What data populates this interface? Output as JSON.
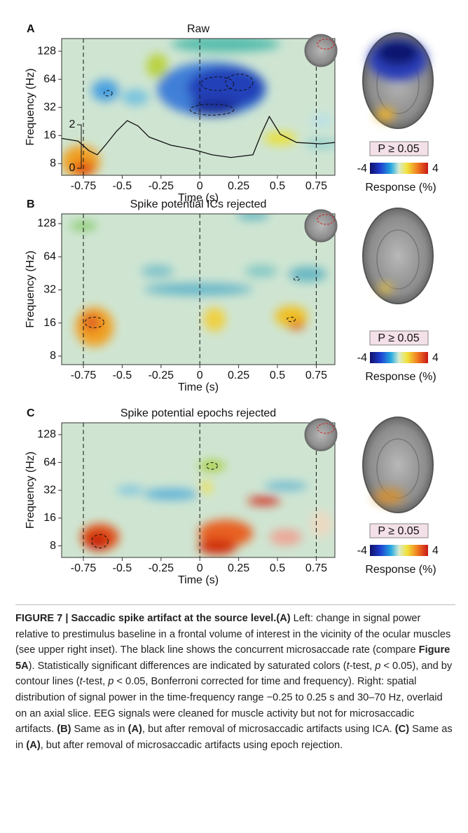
{
  "chart_data": [
    {
      "type": "heatmap",
      "panel": "A",
      "title": "Raw",
      "xlabel": "Time (s)",
      "ylabel": "Frequency (Hz)",
      "xlim": [
        -0.89,
        0.87
      ],
      "xticks": [
        -0.75,
        -0.5,
        -0.25,
        0,
        0.25,
        0.5,
        0.75
      ],
      "ylim": [
        6,
        175
      ],
      "yticks": [
        8,
        16,
        32,
        64,
        128
      ],
      "ylog": true,
      "rate_ticks": [
        2,
        0
      ]
    },
    {
      "type": "heatmap",
      "panel": "B",
      "title": "Spike potential ICs rejected",
      "xlabel": "Time (s)",
      "ylabel": "Frequency (Hz)",
      "xlim": [
        -0.89,
        0.87
      ],
      "xticks": [
        -0.75,
        -0.5,
        -0.25,
        0,
        0.25,
        0.5,
        0.75
      ],
      "ylim": [
        6.7,
        157
      ],
      "yticks": [
        8,
        16,
        32,
        64,
        128
      ],
      "ylog": true
    },
    {
      "type": "heatmap",
      "panel": "C",
      "title": "Spike potential epochs rejected",
      "xlabel": "Time (s)",
      "ylabel": "Frequency (Hz)",
      "xlim": [
        -0.89,
        0.87
      ],
      "xticks": [
        -0.75,
        -0.5,
        -0.25,
        0,
        0.25,
        0.5,
        0.75
      ],
      "ylim": [
        6,
        172
      ],
      "yticks": [
        8,
        16,
        32,
        64,
        128
      ],
      "ylog": true
    }
  ],
  "colorbar": {
    "lim": [
      -4,
      4
    ],
    "label": "Response (%)",
    "mask": "P ≥ 0.05"
  },
  "caption": {
    "runs": [
      "FIGURE 7 | Saccadic spike artifact at the source level.",
      "(A)",
      " Left: change in signal power relative to prestimulus baseline in a frontal volume of interest in the vicinity of the ocular muscles (see upper right inset). The black line shows the concurrent microsaccade rate (compare ",
      "Figure 5A",
      "). Statistically significant differences are indicated by saturated colors (",
      "t",
      "-test, ",
      "p",
      " < 0.05), and by contour lines (",
      "t",
      "-test, ",
      "p",
      " < 0.05, Bonferroni corrected for time and frequency). Right: spatial distribution of signal power in the time-frequency range −0.25 to 0.25 s and 30–70 Hz, overlaid on an axial slice. EEG signals were cleaned for muscle activity but not for microsaccadic artifacts. ",
      "(B)",
      " Same as in ",
      "(A)",
      ", but after removal of microsaccadic artifacts using ICA. ",
      "(C)",
      " Same as in ",
      "(A)",
      ", but after removal of microsaccadic artifacts using epoch rejection."
    ]
  }
}
